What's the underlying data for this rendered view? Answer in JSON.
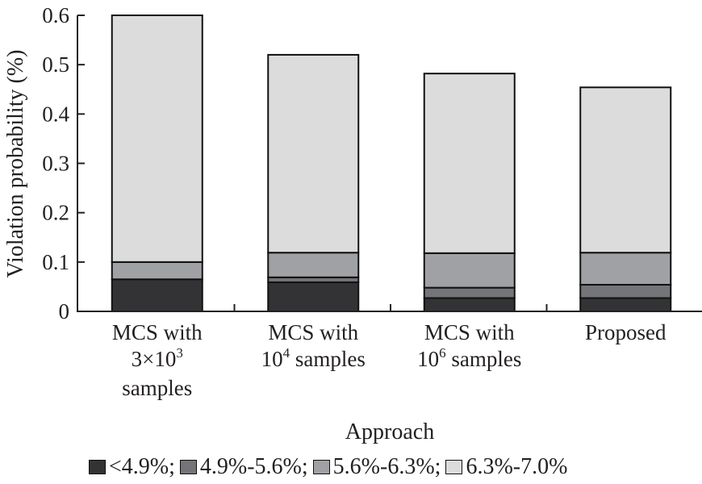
{
  "chart_data": {
    "type": "bar",
    "stacked": true,
    "title": "",
    "xlabel": "Approach",
    "ylabel": "Violation probability (%)",
    "ylim": [
      0,
      0.6
    ],
    "yticks": [
      0,
      0.1,
      0.2,
      0.3,
      0.4,
      0.5,
      0.6
    ],
    "ytick_labels": [
      "0",
      "0.1",
      "0.2",
      "0.3",
      "0.4",
      "0.5",
      "0.6"
    ],
    "grid": false,
    "legend_position": "bottom",
    "categories": [
      {
        "lines": [
          [
            "MCS with"
          ],
          [
            "3×10",
            "3"
          ],
          [
            "samples"
          ]
        ]
      },
      {
        "lines": [
          [
            "MCS with"
          ],
          [
            "10",
            "4",
            " samples"
          ]
        ]
      },
      {
        "lines": [
          [
            "MCS with"
          ],
          [
            "10",
            "6",
            " samples"
          ]
        ]
      },
      {
        "lines": [
          [
            "Proposed"
          ]
        ]
      }
    ],
    "category_names": [
      "MCS with 3×10^3 samples",
      "MCS with 10^4 samples",
      "MCS with 10^6 samples",
      "Proposed"
    ],
    "series": [
      {
        "name": "<4.9%;",
        "color": "#333335",
        "values": [
          0.065,
          0.059,
          0.027,
          0.027
        ]
      },
      {
        "name": "4.9%-5.6%;",
        "color": "#747578",
        "values": [
          0.0,
          0.01,
          0.021,
          0.027
        ]
      },
      {
        "name": "5.6%-6.3%;",
        "color": "#a0a1a4",
        "values": [
          0.035,
          0.05,
          0.07,
          0.065
        ]
      },
      {
        "name": "6.3%-7.0%",
        "color": "#dcdcdc",
        "values": [
          0.5,
          0.401,
          0.364,
          0.335
        ]
      }
    ],
    "totals": [
      0.6,
      0.52,
      0.482,
      0.454
    ]
  }
}
